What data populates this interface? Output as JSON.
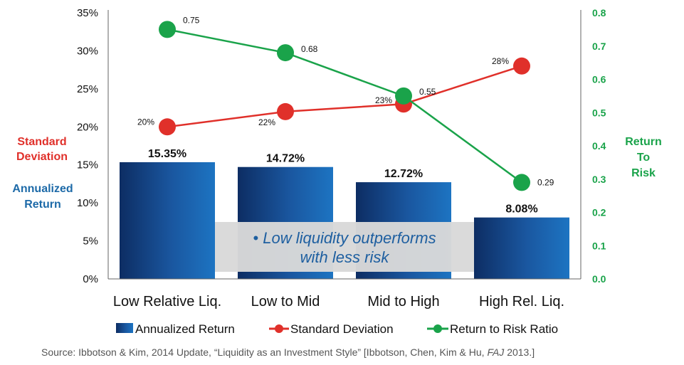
{
  "chart_data": {
    "type": "bar+line",
    "categories": [
      "Low Relative Liq.",
      "Low to Mid",
      "Mid to High",
      "High Rel. Liq."
    ],
    "series": [
      {
        "name": "Annualized Return",
        "kind": "bar",
        "axis": "left",
        "values": [
          15.35,
          14.72,
          12.72,
          8.08
        ],
        "labels": [
          "15.35%",
          "14.72%",
          "12.72%",
          "8.08%"
        ],
        "color": "#1a4f8c"
      },
      {
        "name": "Standard Deviation",
        "kind": "line",
        "axis": "left",
        "values": [
          20,
          22,
          23,
          28
        ],
        "labels": [
          "20%",
          "22%",
          "23%",
          "28%"
        ],
        "color": "#e0302a"
      },
      {
        "name": "Return to Risk Ratio",
        "kind": "line",
        "axis": "right",
        "values": [
          0.75,
          0.68,
          0.55,
          0.29
        ],
        "labels": [
          "0.75",
          "0.68",
          "0.55",
          "0.29"
        ],
        "color": "#1aa34a"
      }
    ],
    "y_left": {
      "min": 0,
      "max": 35,
      "ticks": [
        "0%",
        "5%",
        "10%",
        "15%",
        "20%",
        "25%",
        "30%",
        "35%"
      ]
    },
    "y_right": {
      "min": 0,
      "max": 0.8,
      "ticks": [
        "0.0",
        "0.1",
        "0.2",
        "0.3",
        "0.4",
        "0.5",
        "0.6",
        "0.7",
        "0.8"
      ]
    },
    "ylabel_left_red": [
      "Standard",
      "Deviation"
    ],
    "ylabel_left_blue": [
      "Annualized",
      "Return"
    ],
    "ylabel_right": [
      "Return",
      "To",
      "Risk"
    ],
    "legend": [
      "Annualized Return",
      "Standard Deviation",
      "Return to Risk Ratio"
    ],
    "legend_position": "bottom",
    "annotation": [
      "• Low liquidity outperforms",
      "with less risk"
    ]
  },
  "source": {
    "prefix": "Source: Ibbotson & Kim, 2014 Update, “Liquidity as an Investment Style” [Ibbotson, Chen, Kim & Hu, ",
    "journal": "FAJ",
    "suffix": " 2013.]"
  }
}
